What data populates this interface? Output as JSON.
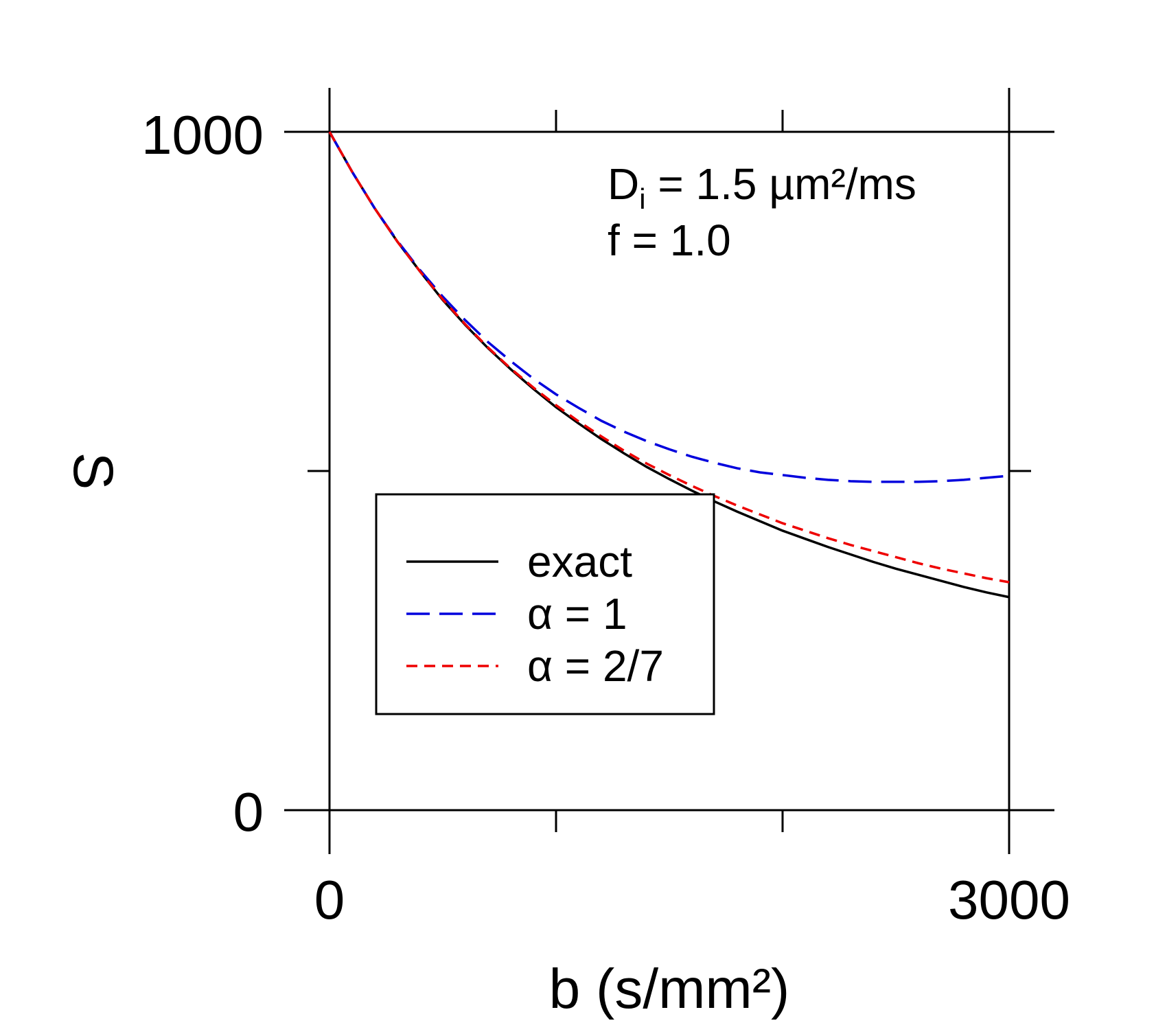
{
  "chart_data": {
    "type": "line",
    "xlabel": "b (s/mm²)",
    "ylabel": "S",
    "xlim": [
      0,
      3000
    ],
    "ylim": [
      0,
      1000
    ],
    "x_tick_labels": [
      "0",
      "3000"
    ],
    "y_tick_labels": [
      "0",
      "1000"
    ],
    "grid": false,
    "legend_position": "lower-left",
    "annotation": {
      "line1_main": "D",
      "line1_sub": "i",
      "line1_rest": " = 1.5 µm²/ms",
      "line2": "f = 1.0"
    },
    "x": [
      0,
      100,
      200,
      300,
      400,
      500,
      600,
      700,
      800,
      900,
      1000,
      1100,
      1200,
      1300,
      1400,
      1500,
      1600,
      1700,
      1800,
      1900,
      2000,
      2100,
      2200,
      2300,
      2400,
      2500,
      2600,
      2700,
      2800,
      2900,
      3000
    ],
    "series": [
      {
        "name": "exact",
        "color": "#000000",
        "dash": "solid",
        "values": [
          1000,
          941,
          887,
          838,
          794,
          752,
          715,
          681,
          650,
          621,
          594,
          570,
          547,
          526,
          506,
          488,
          471,
          455,
          440,
          426,
          412,
          400,
          388,
          377,
          366,
          356,
          347,
          338,
          329,
          321,
          314
        ]
      },
      {
        "name": "α = 1",
        "color": "#0000dd",
        "dash": "long",
        "values": [
          1000,
          941,
          887,
          839,
          796,
          757,
          722,
          690,
          662,
          636,
          613,
          593,
          574,
          558,
          544,
          532,
          521,
          512,
          504,
          498,
          494,
          490,
          487,
          485,
          484,
          484,
          484,
          485,
          487,
          490,
          493
        ]
      },
      {
        "name": "α = 2/7",
        "color": "#ee0000",
        "dash": "short",
        "values": [
          1000,
          941,
          887,
          838,
          794,
          753,
          716,
          682,
          651,
          623,
          597,
          573,
          551,
          530,
          511,
          494,
          478,
          463,
          449,
          436,
          423,
          412,
          401,
          391,
          382,
          373,
          364,
          356,
          349,
          342,
          336
        ]
      }
    ]
  }
}
